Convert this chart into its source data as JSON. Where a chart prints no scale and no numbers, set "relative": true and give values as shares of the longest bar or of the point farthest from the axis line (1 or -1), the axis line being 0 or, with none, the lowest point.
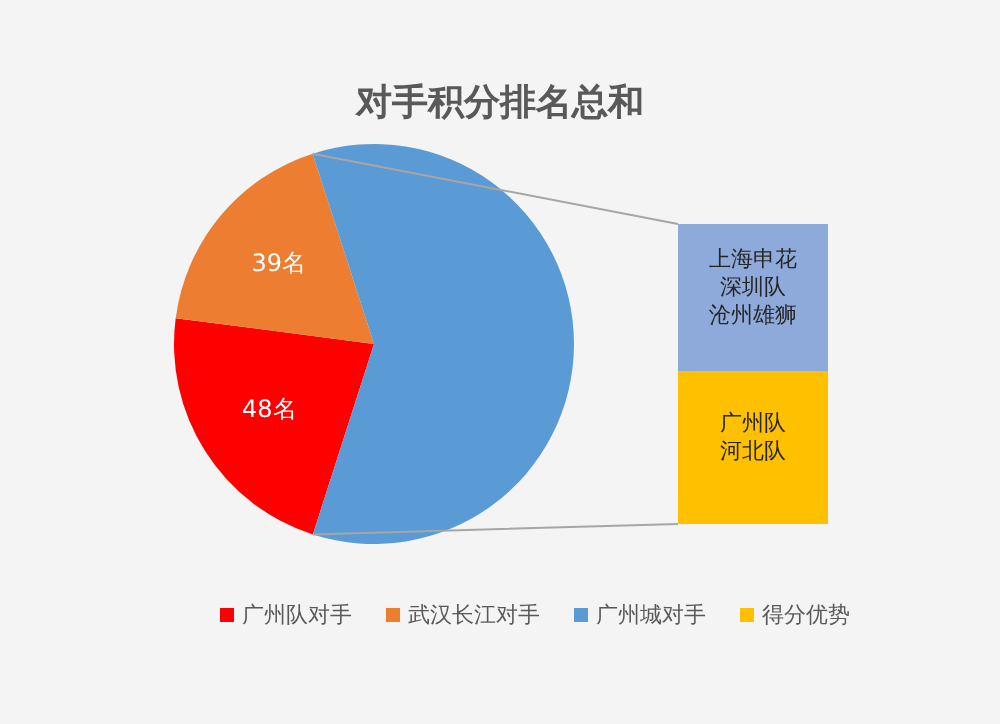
{
  "chart_data": [
    {
      "type": "pie",
      "title": "对手积分排名总和",
      "categories": [
        "广州队对手",
        "武汉长江对手",
        "广州城对手"
      ],
      "values": [
        48,
        39,
        130
      ],
      "colors": [
        "#ff0000",
        "#ed7d31",
        "#5b9bd5"
      ],
      "value_labels": [
        "48名",
        "39名",
        null
      ],
      "legend": "bottom"
    },
    {
      "type": "bar",
      "stacked": true,
      "relative": true,
      "categories": [
        null
      ],
      "legend": "bottom",
      "series": [
        {
          "name": "得分优势",
          "color": "#ffc000",
          "values": [
            0.51
          ]
        },
        {
          "color": "#8eaadb",
          "values": [
            0.49
          ]
        }
      ],
      "annotations": [
        "上海申花",
        "深圳队",
        "沧州雄狮",
        "广州队",
        "河北队"
      ]
    }
  ]
}
